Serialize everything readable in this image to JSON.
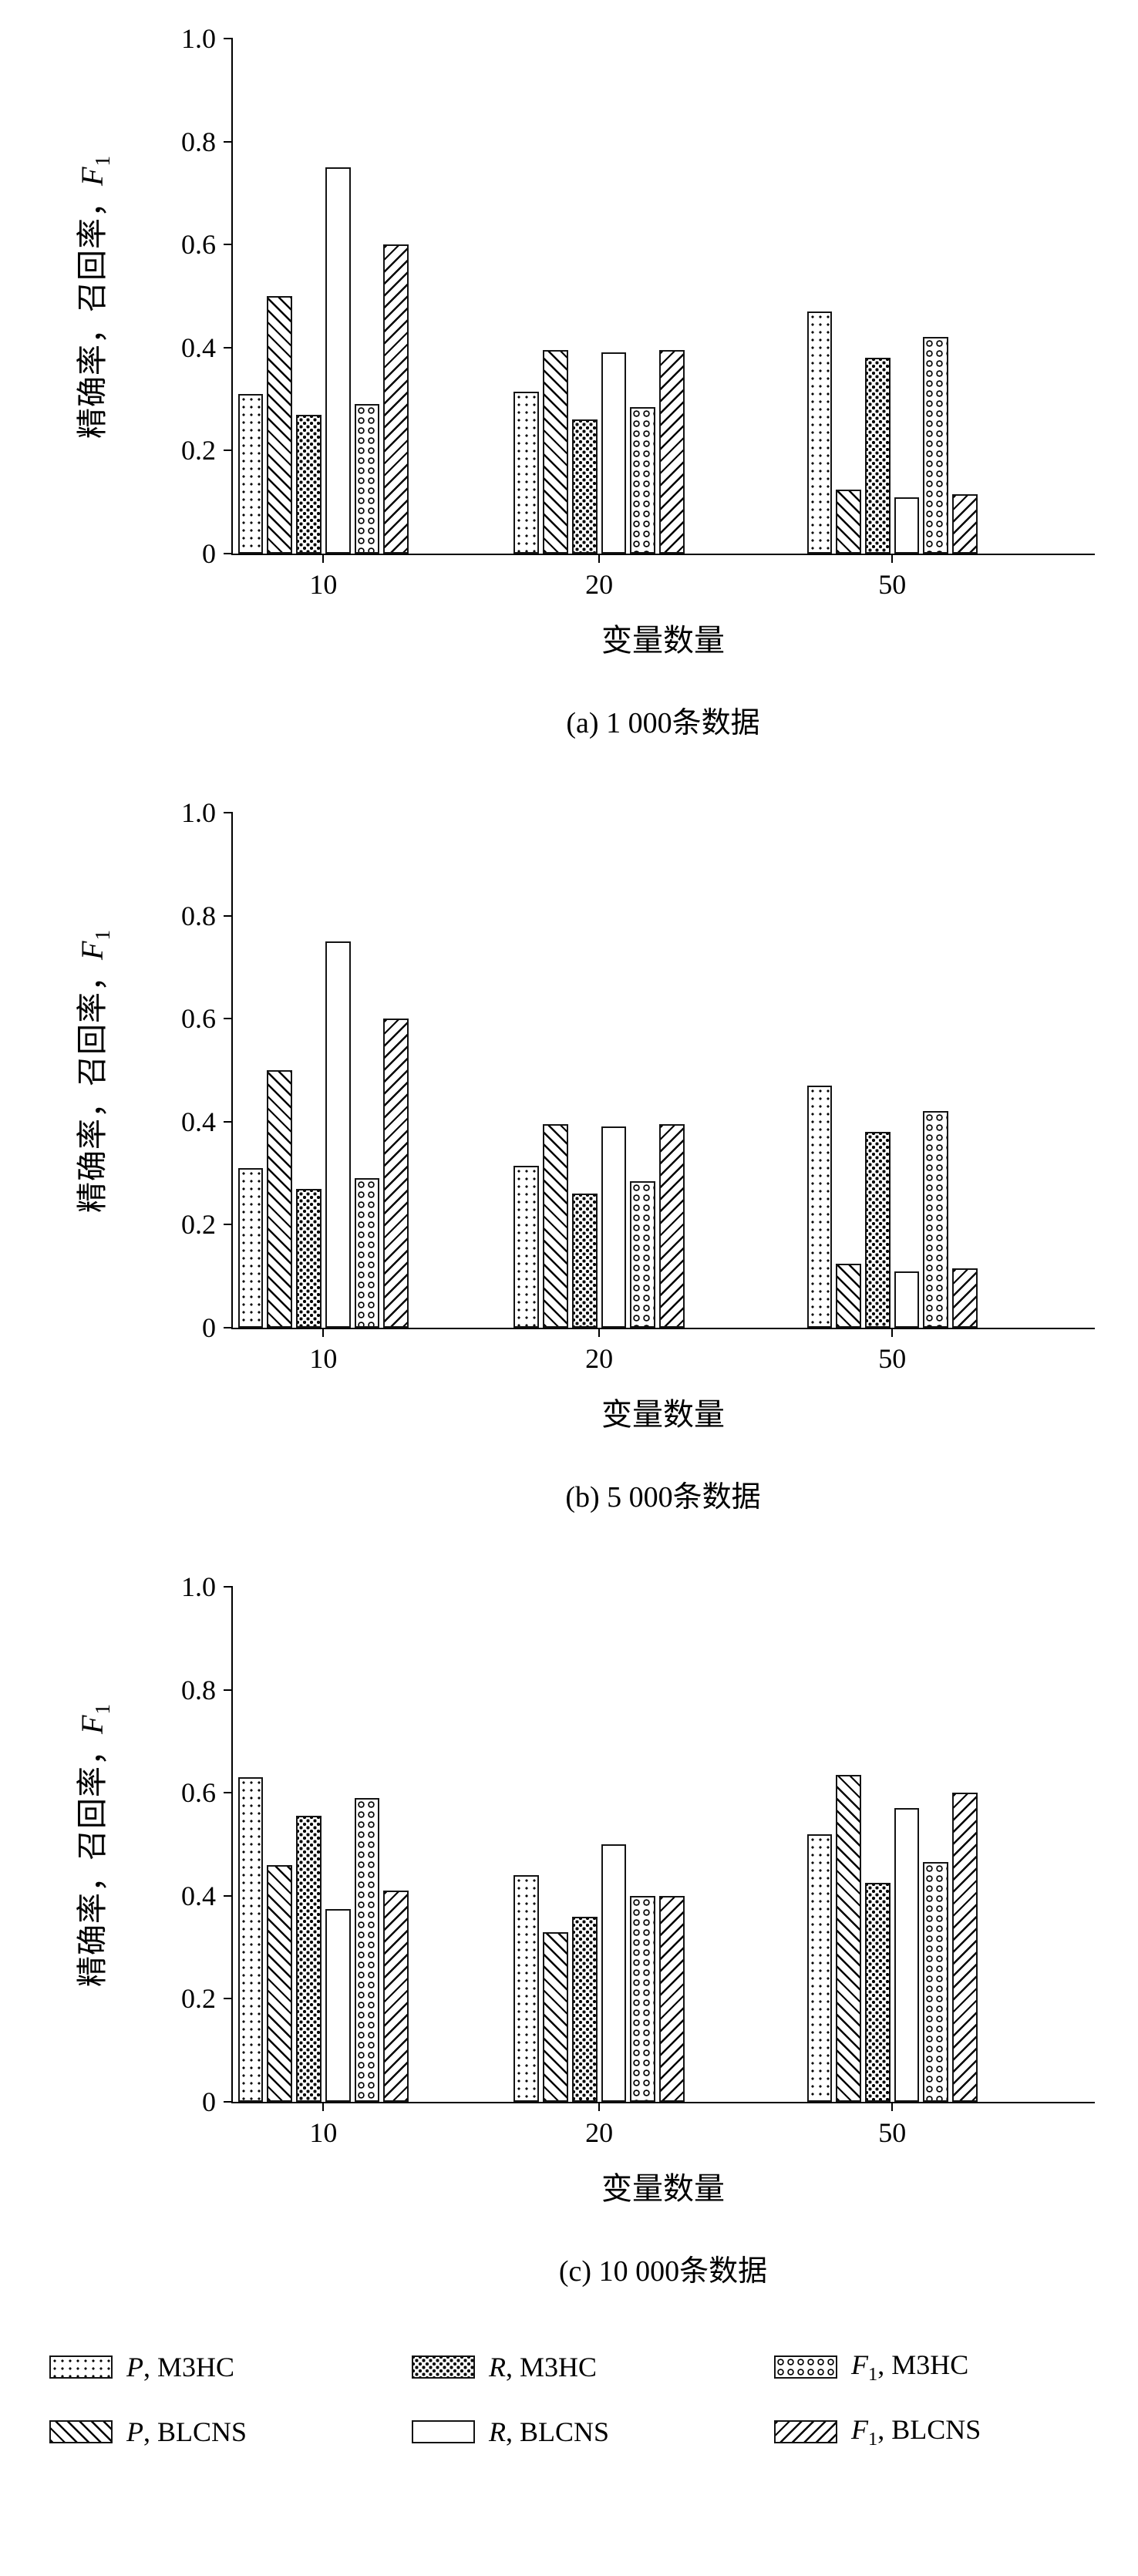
{
  "figure": {
    "background": "#ffffff",
    "axis_color": "#000000",
    "bar_outline_color": "#141414"
  },
  "chart_data": [
    {
      "type": "bar",
      "caption": "(a) 1 000条数据",
      "xlabel": "变量数量",
      "ylabel": "精确率，召回率，F1",
      "ylabel_parts": {
        "prefix": "精确率，召回率，",
        "var": "F",
        "sub": "1"
      },
      "ylim": [
        0,
        1.0
      ],
      "yticks": [
        0,
        0.2,
        0.4,
        0.6,
        0.8,
        1.0
      ],
      "ytick_labels": [
        "0",
        "0.2",
        "0.4",
        "0.6",
        "0.8",
        "1.0"
      ],
      "grid": false,
      "categories": [
        "10",
        "20",
        "50"
      ],
      "series": [
        {
          "name": "P, M3HC",
          "pattern": "dots",
          "values": [
            0.31,
            0.315,
            0.47
          ]
        },
        {
          "name": "P, BLCNS",
          "pattern": "hatch-back",
          "values": [
            0.5,
            0.395,
            0.125
          ]
        },
        {
          "name": "R, M3HC",
          "pattern": "stars",
          "values": [
            0.27,
            0.26,
            0.38
          ]
        },
        {
          "name": "R, BLCNS",
          "pattern": "plain",
          "values": [
            0.75,
            0.39,
            0.11
          ]
        },
        {
          "name": "F1, M3HC",
          "pattern": "circles",
          "values": [
            0.29,
            0.285,
            0.42
          ]
        },
        {
          "name": "F1, BLCNS",
          "pattern": "hatch-fwd",
          "values": [
            0.6,
            0.395,
            0.115
          ]
        }
      ]
    },
    {
      "type": "bar",
      "caption": "(b) 5 000条数据",
      "xlabel": "变量数量",
      "ylabel": "精确率，召回率，F1",
      "ylabel_parts": {
        "prefix": "精确率，召回率，",
        "var": "F",
        "sub": "1"
      },
      "ylim": [
        0,
        1.0
      ],
      "yticks": [
        0,
        0.2,
        0.4,
        0.6,
        0.8,
        1.0
      ],
      "ytick_labels": [
        "0",
        "0.2",
        "0.4",
        "0.6",
        "0.8",
        "1.0"
      ],
      "grid": false,
      "categories": [
        "10",
        "20",
        "50"
      ],
      "series": [
        {
          "name": "P, M3HC",
          "pattern": "dots",
          "values": [
            0.31,
            0.315,
            0.47
          ]
        },
        {
          "name": "P, BLCNS",
          "pattern": "hatch-back",
          "values": [
            0.5,
            0.395,
            0.125
          ]
        },
        {
          "name": "R, M3HC",
          "pattern": "stars",
          "values": [
            0.27,
            0.26,
            0.38
          ]
        },
        {
          "name": "R, BLCNS",
          "pattern": "plain",
          "values": [
            0.75,
            0.39,
            0.11
          ]
        },
        {
          "name": "F1, M3HC",
          "pattern": "circles",
          "values": [
            0.29,
            0.285,
            0.42
          ]
        },
        {
          "name": "F1, BLCNS",
          "pattern": "hatch-fwd",
          "values": [
            0.6,
            0.395,
            0.115
          ]
        }
      ]
    },
    {
      "type": "bar",
      "caption": "(c) 10 000条数据",
      "xlabel": "变量数量",
      "ylabel": "精确率，召回率，F1",
      "ylabel_parts": {
        "prefix": "精确率，召回率，",
        "var": "F",
        "sub": "1"
      },
      "ylim": [
        0,
        1.0
      ],
      "yticks": [
        0,
        0.2,
        0.4,
        0.6,
        0.8,
        1.0
      ],
      "ytick_labels": [
        "0",
        "0.2",
        "0.4",
        "0.6",
        "0.8",
        "1.0"
      ],
      "grid": false,
      "categories": [
        "10",
        "20",
        "50"
      ],
      "series": [
        {
          "name": "P, M3HC",
          "pattern": "dots",
          "values": [
            0.63,
            0.44,
            0.52
          ]
        },
        {
          "name": "P, BLCNS",
          "pattern": "hatch-back",
          "values": [
            0.46,
            0.33,
            0.635
          ]
        },
        {
          "name": "R, M3HC",
          "pattern": "stars",
          "values": [
            0.555,
            0.36,
            0.425
          ]
        },
        {
          "name": "R, BLCNS",
          "pattern": "plain",
          "values": [
            0.375,
            0.5,
            0.57
          ]
        },
        {
          "name": "F1, M3HC",
          "pattern": "circles",
          "values": [
            0.59,
            0.4,
            0.465
          ]
        },
        {
          "name": "F1, BLCNS",
          "pattern": "hatch-fwd",
          "values": [
            0.41,
            0.4,
            0.6
          ]
        }
      ]
    }
  ],
  "legend": {
    "position": "bottom",
    "rows": [
      [
        {
          "var": "P",
          "sub": "",
          "rest": ", M3HC",
          "pattern": "dots"
        },
        {
          "var": "R",
          "sub": "",
          "rest": ", M3HC",
          "pattern": "stars"
        },
        {
          "var": "F",
          "sub": "1",
          "rest": ", M3HC",
          "pattern": "circles"
        }
      ],
      [
        {
          "var": "P",
          "sub": "",
          "rest": ", BLCNS",
          "pattern": "hatch-back"
        },
        {
          "var": "R",
          "sub": "",
          "rest": ", BLCNS",
          "pattern": "plain"
        },
        {
          "var": "F",
          "sub": "1",
          "rest": ", BLCNS",
          "pattern": "hatch-fwd"
        }
      ]
    ]
  }
}
